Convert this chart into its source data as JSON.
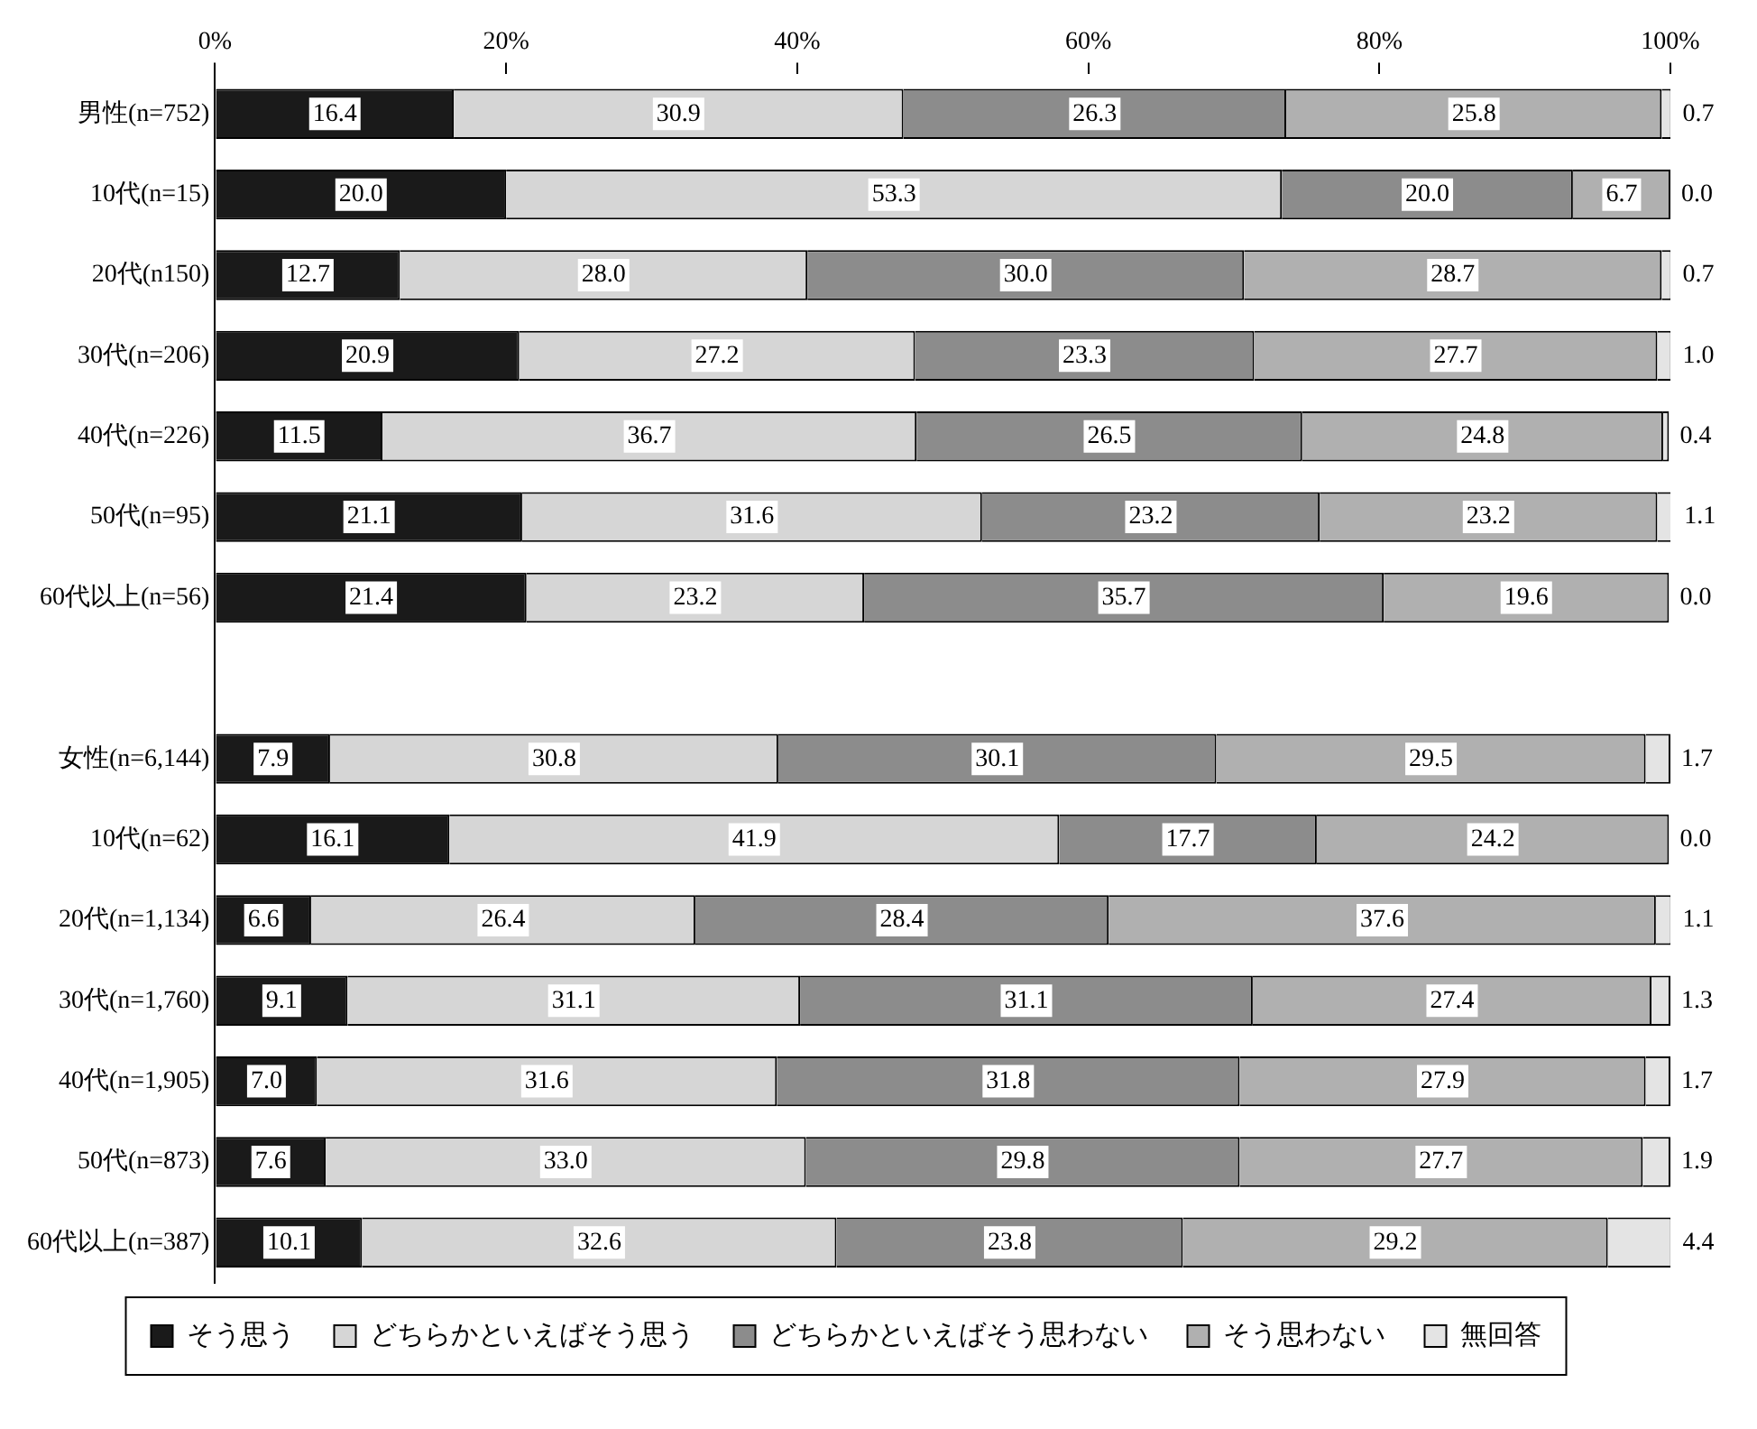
{
  "chart_data": {
    "type": "bar",
    "orientation": "horizontal",
    "stacked": true,
    "legend": "bottom",
    "grid": false,
    "categories": [
      "男性(n=752)",
      "10代(n=15)",
      "20代(n150)",
      "30代(n=206)",
      "40代(n=226)",
      "50代(n=95)",
      "60代以上(n=56)",
      null,
      "女性(n=6,144)",
      "10代(n=62)",
      "20代(n=1,134)",
      "30代(n=1,760)",
      "40代(n=1,905)",
      "50代(n=873)",
      "60代以上(n=387)"
    ],
    "xlim": [
      0,
      100
    ],
    "xticks": [
      {
        "value": 0,
        "label": "0%"
      },
      {
        "value": 20,
        "label": "20%"
      },
      {
        "value": 40,
        "label": "40%"
      },
      {
        "value": 60,
        "label": "60%"
      },
      {
        "value": 80,
        "label": "80%"
      },
      {
        "value": 100,
        "label": "100%"
      }
    ],
    "series": [
      {
        "name": "そう思う",
        "color": "#1a1a1a",
        "values": [
          16.4,
          20.0,
          12.7,
          20.9,
          11.5,
          21.1,
          21.4,
          null,
          7.9,
          16.1,
          6.6,
          9.1,
          7.0,
          7.6,
          10.1
        ],
        "value_labels": [
          "16.4",
          "20.0",
          "12.7",
          "20.9",
          "11.5",
          "21.1",
          "21.4",
          null,
          "7.9",
          "16.1",
          "6.6",
          "9.1",
          "7.0",
          "7.6",
          "10.1"
        ]
      },
      {
        "name": "どちらかといえばそう思う",
        "color": "#d6d6d6",
        "values": [
          30.9,
          53.3,
          28.0,
          27.2,
          36.7,
          31.6,
          23.2,
          null,
          30.8,
          41.9,
          26.4,
          31.1,
          31.6,
          33.0,
          32.6
        ],
        "value_labels": [
          "30.9",
          "53.3",
          "28.0",
          "27.2",
          "36.7",
          "31.6",
          "23.2",
          null,
          "30.8",
          "41.9",
          "26.4",
          "31.1",
          "31.6",
          "33.0",
          "32.6"
        ]
      },
      {
        "name": "どちらかといえばそう思わない",
        "color": "#8c8c8c",
        "values": [
          26.3,
          20.0,
          30.0,
          23.3,
          26.5,
          23.2,
          35.7,
          null,
          30.1,
          17.7,
          28.4,
          31.1,
          31.8,
          29.8,
          23.8
        ],
        "value_labels": [
          "26.3",
          "20.0",
          "30.0",
          "23.3",
          "26.5",
          "23.2",
          "35.7",
          null,
          "30.1",
          "17.7",
          "28.4",
          "31.1",
          "31.8",
          "29.8",
          "23.8"
        ]
      },
      {
        "name": "そう思わない",
        "color": "#b0b0b0",
        "values": [
          25.8,
          6.7,
          28.7,
          27.7,
          24.8,
          23.2,
          19.6,
          null,
          29.5,
          24.2,
          37.6,
          27.4,
          27.9,
          27.7,
          29.2
        ],
        "value_labels": [
          "25.8",
          "6.7",
          "28.7",
          "27.7",
          "24.8",
          "23.2",
          "19.6",
          null,
          "29.5",
          "24.2",
          "37.6",
          "27.4",
          "27.9",
          "27.7",
          "29.2"
        ]
      },
      {
        "name": "無回答",
        "color": "#e4e4e4",
        "values": [
          0.7,
          0.0,
          0.7,
          1.0,
          0.4,
          1.1,
          0.0,
          null,
          1.7,
          0.0,
          1.1,
          1.3,
          1.7,
          1.9,
          4.4
        ],
        "value_labels": [
          "0.7",
          "0.0",
          "0.7",
          "1.0",
          "0.4",
          "1.1",
          "0.0",
          null,
          "1.7",
          "0.0",
          "1.1",
          "1.3",
          "1.7",
          "1.9",
          "4.4"
        ]
      }
    ]
  }
}
